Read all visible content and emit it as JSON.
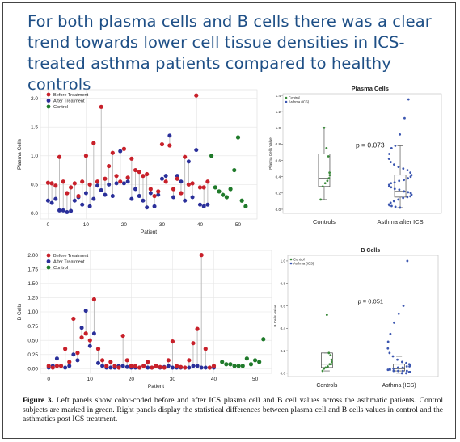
{
  "headline": "For both plasma cells and B cells there was a clear trend towards lower cell tissue densities in ICS-treated asthma patients compared to healthy controls",
  "caption": {
    "label": "Figure 3.",
    "text": "Left panels show color-coded before and after ICS plasma cell and B cell values across the asthmatic patients. Control subjects are marked in green. Right panels display the statistical differences between plasma cell and B cells values in control and the asthmatics post ICS treatment."
  },
  "colors": {
    "before": "#c8202a",
    "after": "#2a2f9a",
    "control": "#1f7a2a",
    "stem": "#b8b8b8",
    "box_blue": "#3b56b0",
    "box_green": "#3a8a3a"
  },
  "chart_data": [
    {
      "type": "scatter",
      "xlabel": "Patient",
      "ylabel": "Plasma Cells",
      "xlim": [
        -2,
        55
      ],
      "ylim": [
        -0.1,
        2.15
      ],
      "xticks": [
        0,
        10,
        20,
        30,
        40,
        50
      ],
      "yticks": [
        0.0,
        0.5,
        1.0,
        1.5,
        2.0
      ],
      "legend": [
        "Before Treatment",
        "After Treatment",
        "Control"
      ],
      "legend_position": "top-left",
      "grid": true,
      "before": [
        0.53,
        0.52,
        0.48,
        0.98,
        0.55,
        0.35,
        0.45,
        0.52,
        0.3,
        0.55,
        1.0,
        0.5,
        1.22,
        0.55,
        1.85,
        0.6,
        0.82,
        1.05,
        0.65,
        0.55,
        1.12,
        0.62,
        0.95,
        0.75,
        0.72,
        0.65,
        0.68,
        0.42,
        0.3,
        0.38,
        1.2,
        0.55,
        1.18,
        0.42,
        0.6,
        0.35,
        0.98,
        0.5,
        0.52,
        2.05,
        0.45,
        0.45,
        0.55
      ],
      "after": [
        0.22,
        0.18,
        0.25,
        0.05,
        0.05,
        0.02,
        0.04,
        0.22,
        0.28,
        0.15,
        0.35,
        0.12,
        0.25,
        0.48,
        0.4,
        0.32,
        0.5,
        0.3,
        0.52,
        1.08,
        0.52,
        0.55,
        0.25,
        0.42,
        0.3,
        0.22,
        0.1,
        0.35,
        0.12,
        0.32,
        0.6,
        0.65,
        1.35,
        0.28,
        0.65,
        0.55,
        0.22,
        0.9,
        0.28,
        1.1,
        0.15,
        0.12,
        0.15
      ],
      "control": [
        1.0,
        0.45,
        0.38,
        0.32,
        0.28,
        0.42,
        0.75,
        1.32,
        0.22,
        0.12
      ],
      "control_x": [
        43,
        44,
        45,
        46,
        47,
        48,
        49,
        50,
        51,
        52
      ]
    },
    {
      "type": "box",
      "title": "Plasma Cells",
      "ylabel": "Plasma Cells Value",
      "categories": [
        "Controls",
        "Asthma after ICS"
      ],
      "legend": [
        "Control",
        "Asthma (ICS)"
      ],
      "legend_position": "top-left",
      "ylim": [
        -0.05,
        1.42
      ],
      "yticks": [
        0.0,
        0.2,
        0.4,
        0.6,
        0.8,
        1.0,
        1.2,
        1.4
      ],
      "annotation": "p = 0.073",
      "groups": [
        {
          "name": "Controls",
          "min": 0.12,
          "q1": 0.28,
          "median": 0.38,
          "q3": 0.68,
          "max": 1.0,
          "points": [
            1.0,
            0.75,
            0.65,
            0.45,
            0.42,
            0.38,
            0.35,
            0.32,
            0.28,
            0.12
          ]
        },
        {
          "name": "Asthma after ICS",
          "min": 0.02,
          "q1": 0.15,
          "median": 0.22,
          "q3": 0.42,
          "max": 0.78,
          "points": [
            1.35,
            1.12,
            0.92,
            0.78,
            0.75,
            0.68,
            0.62,
            0.58,
            0.55,
            0.52,
            0.5,
            0.48,
            0.45,
            0.42,
            0.4,
            0.38,
            0.36,
            0.35,
            0.33,
            0.32,
            0.3,
            0.28,
            0.27,
            0.25,
            0.24,
            0.22,
            0.21,
            0.2,
            0.18,
            0.16,
            0.15,
            0.14,
            0.12,
            0.1,
            0.08,
            0.06,
            0.05,
            0.04,
            0.03,
            0.02
          ]
        }
      ]
    },
    {
      "type": "scatter",
      "xlabel": "Patient",
      "ylabel": "B Cells",
      "xlim": [
        -2,
        54
      ],
      "ylim": [
        -0.08,
        2.08
      ],
      "xticks": [
        0,
        10,
        20,
        30,
        40,
        50
      ],
      "yticks": [
        0.0,
        0.25,
        0.5,
        0.75,
        1.0,
        1.25,
        1.5,
        1.75,
        2.0
      ],
      "legend": [
        "Before Treatment",
        "After Treatment",
        "Control"
      ],
      "legend_position": "top-left",
      "grid": true,
      "before": [
        0.05,
        0.02,
        0.05,
        0.05,
        0.35,
        0.12,
        0.88,
        0.28,
        0.55,
        0.62,
        0.5,
        1.22,
        0.35,
        0.15,
        0.05,
        0.12,
        0.05,
        0.02,
        0.58,
        0.15,
        0.05,
        0.05,
        0.02,
        0.05,
        0.12,
        0.02,
        0.05,
        0.03,
        0.02,
        0.15,
        0.48,
        0.05,
        0.03,
        0.02,
        0.15,
        0.45,
        0.7,
        2.0,
        0.35,
        0.02,
        0.05
      ],
      "after": [
        0.02,
        0.05,
        0.18,
        0.05,
        0.02,
        0.05,
        0.25,
        0.15,
        0.72,
        1.02,
        0.4,
        0.62,
        0.1,
        0.05,
        0.02,
        0.02,
        0.02,
        0.05,
        0.05,
        0.03,
        0.02,
        0.02,
        0.02,
        0.05,
        0.02,
        0.02,
        0.05,
        0.02,
        0.03,
        0.05,
        0.02,
        0.02,
        0.02,
        0.02,
        0.02,
        0.05,
        0.05,
        0.02,
        0.02,
        0.02,
        0.02
      ],
      "control": [
        0.12,
        0.08,
        0.08,
        0.05,
        0.05,
        0.05,
        0.18,
        0.08,
        0.15,
        0.12,
        0.52
      ],
      "control_x": [
        42,
        43,
        44,
        45,
        46,
        47,
        48,
        49,
        50,
        51,
        52
      ]
    },
    {
      "type": "box",
      "title": "B Cells",
      "ylabel": "B Cells Value",
      "categories": [
        "Controls",
        "Asthma (ICS)"
      ],
      "legend": [
        "Control",
        "Asthma (ICS)"
      ],
      "legend_position": "top-left",
      "ylim": [
        -0.03,
        1.05
      ],
      "yticks": [
        0.0,
        0.2,
        0.4,
        0.6,
        0.8,
        1.0
      ],
      "annotation": "p = 0.051",
      "groups": [
        {
          "name": "Controls",
          "min": 0.02,
          "q1": 0.05,
          "median": 0.08,
          "q3": 0.18,
          "max": 0.18,
          "points": [
            0.52,
            0.18,
            0.16,
            0.12,
            0.1,
            0.08,
            0.08,
            0.06,
            0.05,
            0.04,
            0.02
          ]
        },
        {
          "name": "Asthma (ICS)",
          "min": 0.0,
          "q1": 0.02,
          "median": 0.04,
          "q3": 0.08,
          "max": 0.15,
          "points": [
            1.0,
            0.6,
            0.53,
            0.45,
            0.35,
            0.28,
            0.22,
            0.18,
            0.15,
            0.12,
            0.1,
            0.09,
            0.08,
            0.07,
            0.06,
            0.06,
            0.05,
            0.05,
            0.04,
            0.04,
            0.03,
            0.03,
            0.03,
            0.02,
            0.02,
            0.02,
            0.02,
            0.01,
            0.01,
            0.01,
            0.0,
            0.0
          ]
        }
      ]
    }
  ]
}
